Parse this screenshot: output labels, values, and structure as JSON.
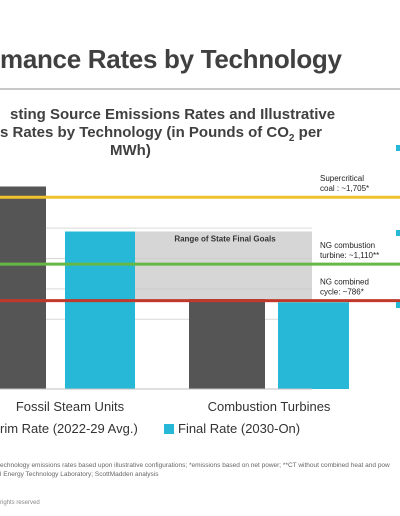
{
  "slide": {
    "title": "mance Rates by Technology",
    "chart_title_line1": "sting Source Emissions Rates and Illustrative",
    "chart_title_line2": "s Rates by Technology (in Pounds of CO",
    "chart_title_sub": "2",
    "chart_title_line2_end": " per",
    "chart_title_line3": "MWh)",
    "footnote_line1": "echnology emissions rates based upon illustrative configurations; *emissions based on net power; **CT without combined heat and pow",
    "footnote_line2": "l Energy Technology Laboratory; ScottMadden analysis",
    "copyright": "rights reserved",
    "accent_color": "#27b8d8"
  },
  "chart_data": {
    "type": "bar",
    "categories": [
      "Fossil Steam Units",
      "Combustion Turbines"
    ],
    "series": [
      {
        "name": "rim Rate (2022-29 Avg.)",
        "color": "#555555",
        "values": [
          1800,
          800
        ]
      },
      {
        "name": "Final Rate (2030-On)",
        "color": "#27b8d8",
        "values": [
          1400,
          771
        ]
      }
    ],
    "ylim": [
      0,
      2000
    ],
    "grid": true,
    "shaded_band": {
      "label": "Range of State Final Goals",
      "from": 771,
      "to": 1400,
      "color": "#c8c8c8"
    },
    "reference_lines": [
      {
        "value": 1705,
        "line1": "Supercritical",
        "line2": "coal : ~1,705*",
        "color": "#f2c12e"
      },
      {
        "value": 1110,
        "line1": "NG combustion",
        "line2": "turbine: ~1,110**",
        "color": "#66b845"
      },
      {
        "value": 786,
        "line1": "NG combined",
        "line2": "cycle: ~786*",
        "color": "#c0392b"
      }
    ]
  }
}
